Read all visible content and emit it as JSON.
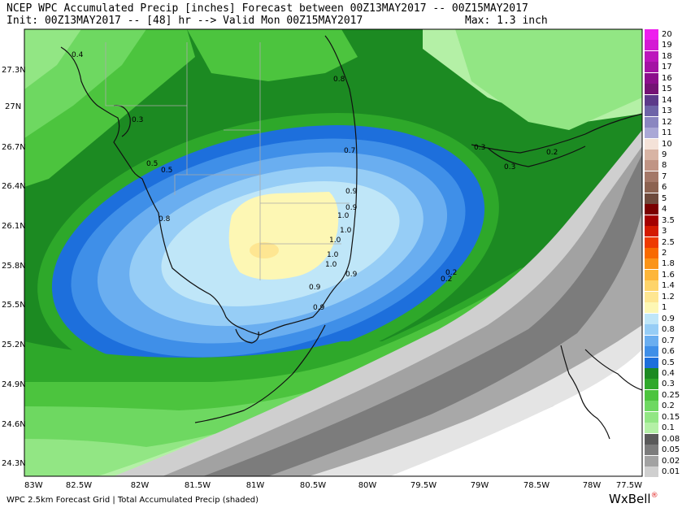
{
  "header": {
    "line1": "NCEP WPC Accumulated Precip [inches] Forecast between 00Z13MAY2017 -- 00Z15MAY2017",
    "line2": "Init: 00Z13MAY2017 -- [48] hr --> Valid Mon 00Z15MAY2017",
    "max_label": "Max: 1.3 inch"
  },
  "lat_labels": [
    "27.3N",
    "27N",
    "26.7N",
    "26.4N",
    "26.1N",
    "25.8N",
    "25.5N",
    "25.2N",
    "24.9N",
    "24.6N",
    "24.3N"
  ],
  "lon_labels": [
    "83W",
    "82.5W",
    "82W",
    "81.5W",
    "81W",
    "80.5W",
    "80W",
    "79.5W",
    "79W",
    "78.5W",
    "78W",
    "77.5W"
  ],
  "contour_labels": [
    "0.4",
    "0.3",
    "0.5",
    "0.5",
    "0.8",
    "0.7",
    "0.9",
    "0.9",
    "1.0",
    "1.0",
    "1.0",
    "1.0",
    "1.0",
    "0.9",
    "0.9",
    "0.3",
    "0.3",
    "0.2",
    "0.2",
    "0.2",
    "0.8",
    "0.9"
  ],
  "legend": [
    {
      "label": "20",
      "color": "#ee1fee"
    },
    {
      "label": "19",
      "color": "#d41ad4"
    },
    {
      "label": "18",
      "color": "#bc16bc"
    },
    {
      "label": "17",
      "color": "#a412a4"
    },
    {
      "label": "16",
      "color": "#8c0e8c"
    },
    {
      "label": "15",
      "color": "#741274"
    },
    {
      "label": "14",
      "color": "#5c3a8a"
    },
    {
      "label": "13",
      "color": "#6e64a8"
    },
    {
      "label": "12",
      "color": "#8a86c0"
    },
    {
      "label": "11",
      "color": "#aaa8d6"
    },
    {
      "label": "10",
      "color": "#f4e2d8"
    },
    {
      "label": "9",
      "color": "#d8b4a4"
    },
    {
      "label": "8",
      "color": "#c09484"
    },
    {
      "label": "7",
      "color": "#a47868"
    },
    {
      "label": "6",
      "color": "#8c6250"
    },
    {
      "label": "5",
      "color": "#6e4a3c"
    },
    {
      "label": "4",
      "color": "#7a0000"
    },
    {
      "label": "3.5",
      "color": "#a40000"
    },
    {
      "label": "3",
      "color": "#d41a00"
    },
    {
      "label": "2.5",
      "color": "#ee3a00"
    },
    {
      "label": "2",
      "color": "#f86a00"
    },
    {
      "label": "1.8",
      "color": "#fb9418"
    },
    {
      "label": "1.6",
      "color": "#fdb63a"
    },
    {
      "label": "1.4",
      "color": "#fed46a"
    },
    {
      "label": "1.2",
      "color": "#fee692"
    },
    {
      "label": "1",
      "color": "#fdf7b4"
    },
    {
      "label": "0.9",
      "color": "#bfe6f8"
    },
    {
      "label": "0.8",
      "color": "#96cdf6"
    },
    {
      "label": "0.7",
      "color": "#6aaef0"
    },
    {
      "label": "0.6",
      "color": "#3f8fe8"
    },
    {
      "label": "0.5",
      "color": "#1d6fdc"
    },
    {
      "label": "0.4",
      "color": "#1c8a22"
    },
    {
      "label": "0.3",
      "color": "#2ea82a"
    },
    {
      "label": "0.25",
      "color": "#4cc43e"
    },
    {
      "label": "0.2",
      "color": "#6ed861"
    },
    {
      "label": "0.15",
      "color": "#92e684"
    },
    {
      "label": "0.1",
      "color": "#b4f0a6"
    },
    {
      "label": "0.08",
      "color": "#5a5a5a"
    },
    {
      "label": "0.05",
      "color": "#7c7c7c"
    },
    {
      "label": "0.02",
      "color": "#a2a2a2"
    },
    {
      "label": "0.01",
      "color": "#cfcfcf"
    }
  ],
  "footer": "WPC 2.5km Forecast Grid | Total Accumulated Precip (shaded)",
  "logo": {
    "text": "WxBell",
    "mark": "®"
  }
}
